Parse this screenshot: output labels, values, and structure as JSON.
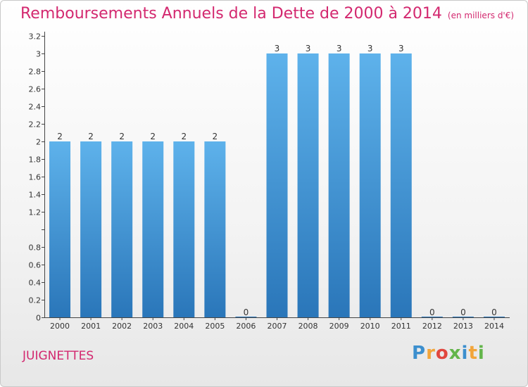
{
  "header": {
    "title": "Remboursements Annuels de la Dette de 2000 à 2014",
    "unit": "(en milliers d'€)"
  },
  "footer": {
    "commune": "JUIGNETTES",
    "logo_letters": [
      "P",
      "r",
      "o",
      "x",
      "i",
      "t",
      "i"
    ]
  },
  "colors": {
    "accent": "#d3286f",
    "bar_top": "#5eb2eb",
    "bar_bottom": "#2a76b9",
    "logo": [
      "#3c8fce",
      "#f2a53a",
      "#e1473e",
      "#63b54b",
      "#3c8fce",
      "#f2a53a",
      "#63b54b"
    ]
  },
  "chart_data": {
    "type": "bar",
    "title": "Remboursements Annuels de la Dette de 2000 à 2014",
    "categories": [
      "2000",
      "2001",
      "2002",
      "2003",
      "2004",
      "2005",
      "2006",
      "2007",
      "2008",
      "2009",
      "2010",
      "2011",
      "2012",
      "2013",
      "2014"
    ],
    "values": [
      2,
      2,
      2,
      2,
      2,
      2,
      0,
      3,
      3,
      3,
      3,
      3,
      0,
      0,
      0
    ],
    "data_labels": [
      "2",
      "2",
      "2",
      "2",
      "2",
      "2",
      "0",
      "3",
      "3",
      "3",
      "3",
      "3",
      "0",
      "0",
      "0"
    ],
    "ylim": [
      0,
      3.2
    ],
    "yticks": [
      0,
      0.2,
      0.4,
      0.6,
      0.8,
      1,
      1.2,
      1.4,
      1.6,
      1.8,
      2,
      2.2,
      2.4,
      2.6,
      2.8,
      3,
      3.2
    ],
    "ytick_labels": [
      "0",
      "0.2",
      "0.4",
      "0.6",
      "0.8",
      "",
      "1.2",
      "1.4",
      "1.6",
      "1.8",
      "2",
      "2.2",
      "2.4",
      "2.6",
      "2.8",
      "3",
      "3.2"
    ],
    "grid": false,
    "legend": "none"
  }
}
